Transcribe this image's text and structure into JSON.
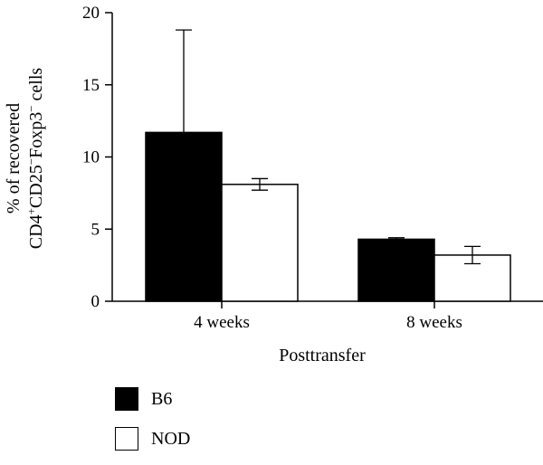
{
  "chart_data": {
    "type": "bar",
    "categories": [
      "4 weeks",
      "8 weeks"
    ],
    "series": [
      {
        "name": "B6",
        "color": "#000000",
        "values": [
          11.7,
          4.3
        ],
        "error": [
          7.1,
          0.1
        ]
      },
      {
        "name": "NOD",
        "color": "#ffffff",
        "values": [
          8.1,
          3.2
        ],
        "error": [
          0.4,
          0.6
        ]
      }
    ],
    "ylim": [
      0,
      20
    ],
    "yticks": [
      0,
      5,
      10,
      15,
      20
    ],
    "xlabel": "Posttransfer",
    "ylabel_line1": "% of recovered",
    "ylabel_line2": {
      "a": "CD4",
      "a_sup": "+",
      "b": "CD25",
      "b_sup": "−",
      "c": "Foxp3",
      "c_sup": "−",
      "d": " cells"
    },
    "legend_position": "bottom-left"
  }
}
